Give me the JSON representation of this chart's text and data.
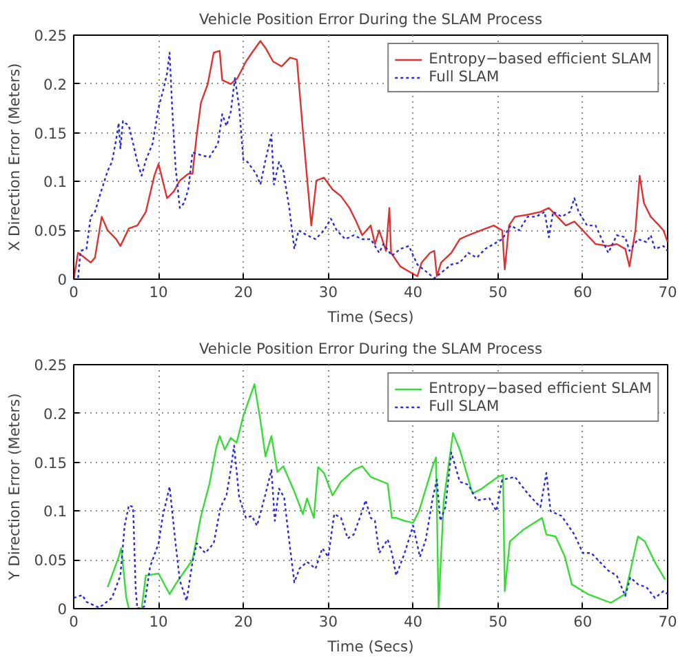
{
  "chart_data": [
    {
      "type": "line",
      "title": "Vehicle Position Error During the SLAM Process",
      "xlabel": "Time (Secs)",
      "ylabel": "X Direction Error (Meters)",
      "xlim": [
        0,
        70
      ],
      "xticks": [
        0,
        10,
        20,
        30,
        40,
        50,
        60,
        70
      ],
      "ylim": [
        0,
        0.25
      ],
      "yticks": [
        0,
        0.05,
        0.1,
        0.15,
        0.2,
        0.25
      ],
      "grid": true,
      "legend": "top right",
      "series": [
        {
          "name": "Entropy−based efficient SLAM",
          "color": "#e03030",
          "line_style": "solid",
          "x": [
            0,
            0.5,
            1,
            2,
            2.5,
            3.3,
            4,
            5,
            5.5,
            6.5,
            7.5,
            8.5,
            9.5,
            10,
            11,
            11.8,
            12.5,
            13.5,
            14,
            14.5,
            15,
            15.8,
            16.5,
            17.2,
            17.5,
            18.5,
            19.3,
            20.3,
            21,
            22,
            22.6,
            23.5,
            24.5,
            25.5,
            26.3,
            27,
            28,
            28.6,
            29.5,
            30.5,
            31.5,
            32.5,
            33.3,
            34,
            35,
            35.5,
            36,
            36.8,
            37.2,
            37.4,
            38.5,
            39.5,
            40.5,
            41,
            42,
            42.5,
            42.8,
            43.3,
            44.5,
            45.5,
            46.5,
            48,
            49.5,
            50.5,
            50.8,
            51.3,
            52,
            53.5,
            55,
            56,
            57,
            58,
            59,
            60,
            61.5,
            63,
            64,
            65,
            65.5,
            66.2,
            66.7,
            67.2,
            68,
            69,
            69.5,
            70
          ],
          "values": [
            0,
            0.027,
            0.024,
            0.017,
            0.022,
            0.064,
            0.05,
            0.041,
            0.034,
            0.052,
            0.055,
            0.069,
            0.106,
            0.118,
            0.083,
            0.09,
            0.101,
            0.108,
            0.108,
            0.148,
            0.181,
            0.2,
            0.232,
            0.234,
            0.204,
            0.2,
            0.206,
            0.223,
            0.232,
            0.244,
            0.237,
            0.223,
            0.218,
            0.227,
            0.225,
            0.153,
            0.055,
            0.101,
            0.104,
            0.092,
            0.085,
            0.073,
            0.059,
            0.045,
            0.055,
            0.036,
            0.05,
            0.029,
            0.073,
            0.027,
            0.013,
            0.008,
            0.003,
            0.017,
            0.027,
            0.029,
            0.003,
            0.017,
            0.027,
            0.041,
            0.045,
            0.05,
            0.055,
            0.05,
            0.01,
            0.055,
            0.064,
            0.066,
            0.069,
            0.073,
            0.064,
            0.055,
            0.059,
            0.05,
            0.036,
            0.034,
            0.036,
            0.031,
            0.013,
            0.05,
            0.106,
            0.078,
            0.064,
            0.055,
            0.05,
            0.038
          ]
        },
        {
          "name": "Full SLAM",
          "color": "#2a2ae0",
          "line_style": "dotted",
          "x": [
            0,
            0.5,
            0.8,
            1.5,
            2,
            2.5,
            3.3,
            4,
            4.5,
            5,
            5.3,
            5.5,
            5.8,
            6.5,
            7,
            7.5,
            8,
            8.5,
            9.3,
            10,
            10.5,
            11,
            11.3,
            11.6,
            12,
            12.5,
            13,
            13.5,
            14,
            15,
            16,
            17,
            17.5,
            18,
            18.5,
            19,
            19.5,
            20,
            20.5,
            21.5,
            22,
            22.5,
            23.3,
            23.6,
            24.2,
            24.7,
            25.4,
            26,
            26.5,
            27.5,
            28.5,
            29.5,
            30.3,
            31,
            32,
            33,
            34,
            35,
            36,
            36.5,
            37.5,
            38.5,
            39.5,
            40.5,
            41.5,
            42.5,
            43.5,
            44.5,
            45.5,
            46.5,
            47.5,
            48.5,
            49.5,
            50.5,
            51.5,
            52.5,
            53.5,
            54.5,
            55.5,
            56,
            56.5,
            57.5,
            58.5,
            59,
            59.5,
            60.5,
            61.5,
            62.5,
            63,
            64,
            65,
            65.5,
            66.5,
            67.5,
            68,
            68.5,
            69.5,
            70
          ],
          "values": [
            0,
            0,
            0.029,
            0.031,
            0.064,
            0.069,
            0.092,
            0.111,
            0.12,
            0.143,
            0.16,
            0.134,
            0.162,
            0.157,
            0.139,
            0.12,
            0.106,
            0.122,
            0.139,
            0.176,
            0.192,
            0.211,
            0.232,
            0.176,
            0.115,
            0.073,
            0.078,
            0.092,
            0.13,
            0.127,
            0.125,
            0.139,
            0.169,
            0.157,
            0.171,
            0.206,
            0.176,
            0.122,
            0.12,
            0.108,
            0.097,
            0.118,
            0.148,
            0.097,
            0.12,
            0.111,
            0.073,
            0.031,
            0.05,
            0.045,
            0.041,
            0.05,
            0.062,
            0.05,
            0.041,
            0.045,
            0.041,
            0.041,
            0.027,
            0.036,
            0.024,
            0.031,
            0.034,
            0.015,
            0.008,
            0.001,
            0.008,
            0.015,
            0.017,
            0.027,
            0.022,
            0.031,
            0.036,
            0.041,
            0.055,
            0.05,
            0.064,
            0.064,
            0.069,
            0.043,
            0.069,
            0.064,
            0.069,
            0.083,
            0.069,
            0.055,
            0.055,
            0.036,
            0.027,
            0.045,
            0.043,
            0.029,
            0.041,
            0.038,
            0.045,
            0.031,
            0.034,
            0.029
          ]
        }
      ]
    },
    {
      "type": "line",
      "title": "Vehicle Position Error During the SLAM Process",
      "xlabel": "Time (Secs)",
      "ylabel": "Y Direction Error (Meters)",
      "xlim": [
        0,
        70
      ],
      "xticks": [
        0,
        10,
        20,
        30,
        40,
        50,
        60,
        70
      ],
      "ylim": [
        0,
        0.25
      ],
      "yticks": [
        0,
        0.05,
        0.1,
        0.15,
        0.2,
        0.25
      ],
      "grid": true,
      "legend": "top right",
      "series": [
        {
          "name": "Entropy−based efficient SLAM",
          "color": "#33dd33",
          "line_style": "solid",
          "x": [
            4,
            5.3,
            5.6,
            6.2,
            6.5,
            8,
            8.5,
            10,
            11.3,
            12,
            14,
            15,
            16,
            16.8,
            17.2,
            17.8,
            18.5,
            19.2,
            20,
            21.3,
            22,
            22.6,
            23.3,
            24,
            24.7,
            26,
            27,
            27.5,
            28.3,
            28.8,
            29.5,
            30.5,
            31.5,
            33,
            34,
            35,
            37,
            37.5,
            38,
            39,
            40,
            40.7,
            42.3,
            42.7,
            43,
            43.6,
            44.7,
            45.5,
            47,
            48.1,
            50,
            50.6,
            50.8,
            51.4,
            53,
            55.2,
            55.7,
            56.8,
            57.9,
            58.7,
            60.6,
            63.3,
            65,
            66.5,
            67.3,
            68.6,
            69.7
          ],
          "values": [
            0.022,
            0.053,
            0.062,
            0.011,
            0,
            0,
            0.034,
            0.036,
            0.015,
            0.025,
            0.05,
            0.095,
            0.128,
            0.165,
            0.177,
            0.163,
            0.175,
            0.17,
            0.198,
            0.23,
            0.193,
            0.156,
            0.177,
            0.14,
            0.146,
            0.12,
            0.097,
            0.113,
            0.093,
            0.145,
            0.139,
            0.116,
            0.13,
            0.142,
            0.146,
            0.135,
            0.128,
            0.093,
            0.093,
            0.09,
            0.088,
            0.1,
            0.146,
            0.155,
            0,
            0.11,
            0.18,
            0.163,
            0.118,
            0.123,
            0.135,
            0.137,
            0.018,
            0.069,
            0.081,
            0.093,
            0.076,
            0.074,
            0.053,
            0.025,
            0.015,
            0.006,
            0.015,
            0.074,
            0.069,
            0.046,
            0.03
          ]
        },
        {
          "name": "Full SLAM",
          "color": "#2a2ae0",
          "line_style": "dotted",
          "x": [
            0,
            1,
            1.5,
            3,
            4.5,
            5.5,
            6,
            6.5,
            7,
            7.3,
            7.5,
            8.3,
            9,
            10,
            10.5,
            11.3,
            12,
            12.5,
            13.3,
            14,
            14.5,
            15.5,
            16.5,
            17.3,
            18,
            18.5,
            18.9,
            19.5,
            20.3,
            21,
            21.6,
            22.5,
            23.3,
            23.7,
            24.2,
            24.8,
            25.5,
            26,
            26.6,
            27.5,
            28.5,
            29.3,
            30,
            30.7,
            31.5,
            32.3,
            33,
            34,
            34.4,
            35,
            35.5,
            36,
            37,
            37.5,
            38,
            39,
            40,
            40.8,
            41.5,
            42.3,
            42.8,
            43.2,
            43.8,
            44.5,
            45.5,
            46.5,
            47.5,
            49,
            49.8,
            50.5,
            52,
            53.5,
            55,
            55.7,
            56.2,
            57.5,
            59,
            60,
            61,
            62,
            63,
            64,
            65,
            65.6,
            66.5,
            67.5,
            68.5,
            69.5,
            70
          ],
          "values": [
            0.011,
            0.014,
            0.007,
            0.001,
            0.011,
            0.034,
            0.085,
            0.106,
            0.104,
            0.02,
            0,
            0.002,
            0.043,
            0.067,
            0.095,
            0.125,
            0.067,
            0.029,
            0.008,
            0.048,
            0.067,
            0.057,
            0.067,
            0.104,
            0.116,
            0.142,
            0.167,
            0.114,
            0.093,
            0.095,
            0.085,
            0.114,
            0.142,
            0.09,
            0.123,
            0.114,
            0.062,
            0.027,
            0.041,
            0.048,
            0.041,
            0.062,
            0.053,
            0.097,
            0.093,
            0.072,
            0.076,
            0.1,
            0.111,
            0.093,
            0.09,
            0.057,
            0.071,
            0.057,
            0.034,
            0.057,
            0.085,
            0.053,
            0.071,
            0.113,
            0.132,
            0.09,
            0.104,
            0.16,
            0.13,
            0.127,
            0.111,
            0.113,
            0.1,
            0.132,
            0.135,
            0.118,
            0.104,
            0.139,
            0.1,
            0.095,
            0.076,
            0.057,
            0.057,
            0.048,
            0.039,
            0.034,
            0.013,
            0.032,
            0.025,
            0.022,
            0.011,
            0.018,
            0.015
          ]
        }
      ]
    }
  ]
}
